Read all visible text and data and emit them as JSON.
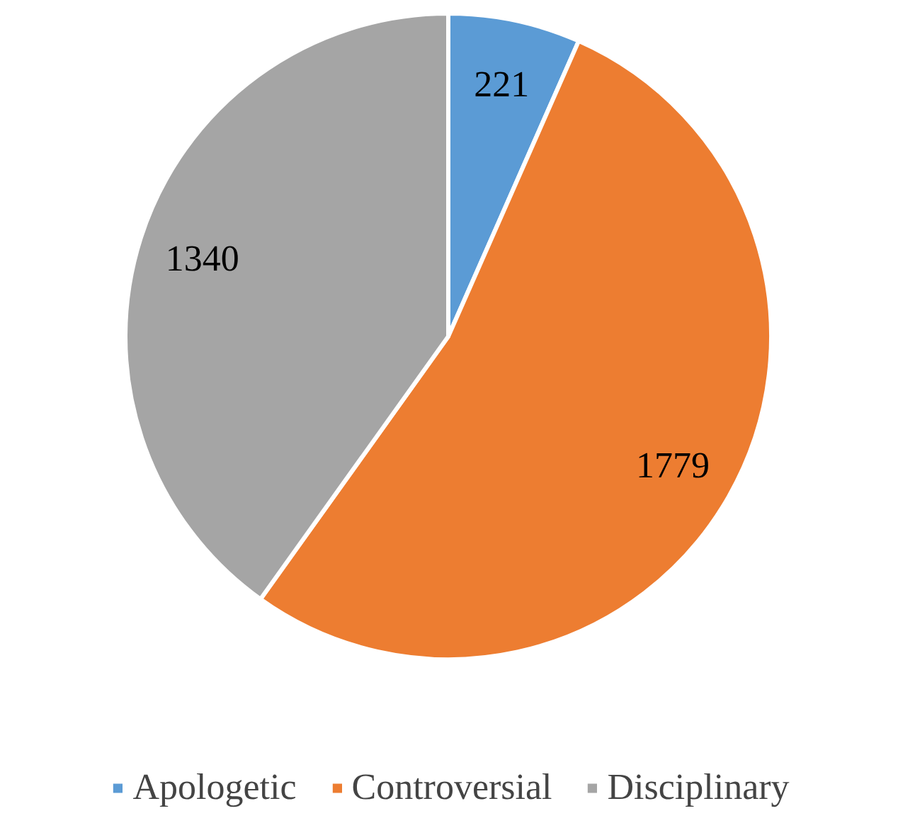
{
  "chart_data": {
    "type": "pie",
    "categories": [
      "Apologetic",
      "Controversial",
      "Disciplinary"
    ],
    "values": [
      221,
      1779,
      1340
    ],
    "colors": [
      "#5b9bd5",
      "#ed7d31",
      "#a5a5a5"
    ],
    "data_labels": true,
    "legend": "bottom"
  }
}
